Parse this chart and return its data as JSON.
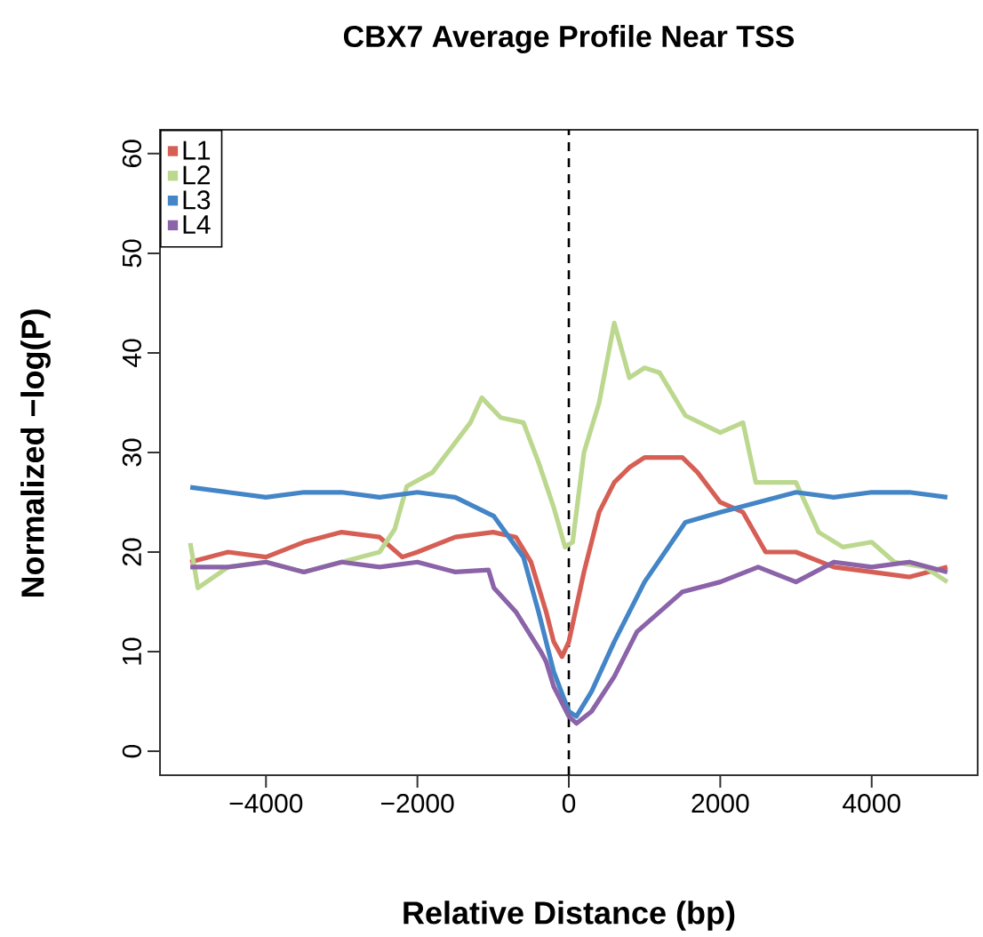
{
  "chart_data": {
    "type": "line",
    "title": "CBX7 Average Profile Near TSS",
    "xlabel": "Relative Distance (bp)",
    "ylabel": "Normalized −log(P)",
    "xlim": [
      -5400,
      5400
    ],
    "ylim": [
      -2.4,
      62.4
    ],
    "xticks": [
      {
        "value": -4000,
        "label": "−4000"
      },
      {
        "value": -2000,
        "label": "−2000"
      },
      0,
      2000,
      4000
    ],
    "yticks": [
      0,
      10,
      20,
      30,
      40,
      50,
      60
    ],
    "grid": false,
    "legend": "top left",
    "line_style": "solid",
    "marker": "none",
    "ref_lines": [
      {
        "axis": "x",
        "value": 0,
        "color": "#000000",
        "line_style": "dashed"
      }
    ],
    "series": [
      {
        "name": "L1",
        "color": "#d65f55",
        "x": [
          -5000,
          -4500,
          -4000,
          -3500,
          -3000,
          -2500,
          -2200,
          -2000,
          -1500,
          -1000,
          -700,
          -500,
          -300,
          -200,
          -90,
          0,
          200,
          400,
          600,
          800,
          1000,
          1500,
          1700,
          2000,
          2300,
          2600,
          3000,
          3500,
          4000,
          4500,
          5000
        ],
        "values": [
          19,
          20,
          19.5,
          21,
          22,
          21.5,
          19.5,
          20,
          21.5,
          22,
          21.5,
          19,
          14,
          11,
          9.5,
          11,
          18,
          24,
          27,
          28.5,
          29.5,
          29.5,
          28,
          25,
          24,
          20,
          20,
          18.5,
          18,
          17.5,
          18.5
        ]
      },
      {
        "name": "L2",
        "color": "#bcd88f",
        "x": [
          -5000,
          -4900,
          -4500,
          -4000,
          -3500,
          -3000,
          -2500,
          -2300,
          -2140,
          -1800,
          -1600,
          -1300,
          -1150,
          -900,
          -600,
          -400,
          -200,
          -50,
          50,
          200,
          400,
          600,
          800,
          1000,
          1200,
          1540,
          2000,
          2300,
          2470,
          3000,
          3300,
          3620,
          4000,
          4300,
          4700,
          5000
        ],
        "values": [
          20.9,
          16.4,
          18.5,
          19,
          18,
          19,
          20,
          22.3,
          26.6,
          28,
          30,
          33,
          35.5,
          33.5,
          33,
          29,
          24.5,
          20.5,
          21,
          30,
          35,
          43,
          37.5,
          38.5,
          38,
          33.7,
          32,
          33,
          27,
          27,
          22,
          20.5,
          21,
          19,
          18.5,
          17
        ]
      },
      {
        "name": "L3",
        "color": "#4385c6",
        "x": [
          -5000,
          -4500,
          -4000,
          -3500,
          -3000,
          -2500,
          -2000,
          -1500,
          -990,
          -600,
          -400,
          -200,
          0,
          100,
          300,
          600,
          1000,
          1540,
          2000,
          2500,
          3000,
          3500,
          4000,
          4500,
          5000
        ],
        "values": [
          26.5,
          26,
          25.5,
          26,
          26,
          25.5,
          26,
          25.5,
          23.6,
          19.5,
          14,
          8,
          4,
          3.5,
          6,
          11,
          17,
          23,
          24,
          25,
          26,
          25.5,
          26,
          26,
          25.5
        ]
      },
      {
        "name": "L4",
        "color": "#8b63a8",
        "x": [
          -5000,
          -4500,
          -4000,
          -3500,
          -3000,
          -2500,
          -2000,
          -1500,
          -1060,
          -990,
          -700,
          -370,
          -300,
          -200,
          0,
          100,
          300,
          600,
          900,
          1200,
          1500,
          2000,
          2500,
          3000,
          3500,
          4000,
          4500,
          5000
        ],
        "values": [
          18.5,
          18.5,
          19,
          18,
          19,
          18.5,
          19,
          18,
          18.2,
          16.4,
          14,
          10,
          9,
          6.5,
          3.5,
          2.8,
          4,
          7.5,
          12,
          14,
          16,
          17,
          18.5,
          17,
          19,
          18.5,
          19,
          18
        ]
      }
    ]
  }
}
